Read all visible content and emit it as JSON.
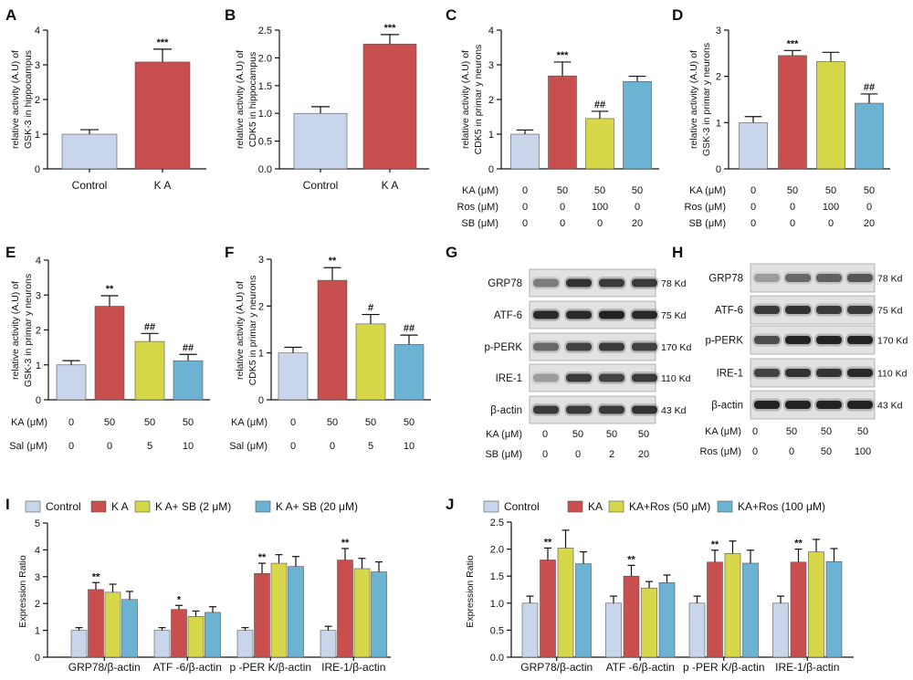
{
  "chart_data": [
    {
      "panel": "A",
      "type": "bar",
      "ylabel": [
        "relative activity (A.U) of",
        "GSK-3 in hippocampus"
      ],
      "ylim": [
        0,
        4
      ],
      "yticks": [
        "0",
        "1",
        "2",
        "3",
        "4"
      ],
      "categories": [
        "Control",
        "K A"
      ],
      "values": [
        1.0,
        3.08
      ],
      "error_upper": [
        1.13,
        3.45
      ],
      "annotations": [
        "",
        "***"
      ],
      "colors": [
        "#c9d5ea",
        "#c94f4f"
      ]
    },
    {
      "panel": "B",
      "type": "bar",
      "ylabel": [
        "relative activity (A.U) of",
        "CDK5 in hippocampus"
      ],
      "ylim": [
        0,
        2.5
      ],
      "yticks": [
        "0.0",
        "0.5",
        "1.0",
        "1.5",
        "2.0",
        "2.5"
      ],
      "categories": [
        "Control",
        "K A"
      ],
      "values": [
        1.0,
        2.25
      ],
      "error_upper": [
        1.12,
        2.42
      ],
      "annotations": [
        "",
        "***"
      ],
      "colors": [
        "#c9d5ea",
        "#c94f4f"
      ]
    },
    {
      "panel": "C",
      "type": "bar",
      "ylabel": [
        "relative activity (A.U) of",
        "CDK5 in primar y neurons"
      ],
      "ylim": [
        0,
        4
      ],
      "yticks": [
        "0",
        "1",
        "2",
        "3",
        "4"
      ],
      "values": [
        1.0,
        2.68,
        1.45,
        2.52
      ],
      "error_upper": [
        1.12,
        3.08,
        1.66,
        2.67
      ],
      "annotations": [
        "",
        "***",
        "##",
        ""
      ],
      "colors": [
        "#c9d5ea",
        "#c94f4f",
        "#d6d84a",
        "#6cb3d3"
      ],
      "conditions": [
        {
          "label": "KA (μM)",
          "values": [
            "0",
            "50",
            "50",
            "50"
          ]
        },
        {
          "label": "Ros (μM)",
          "values": [
            "0",
            "0",
            "100",
            "0"
          ]
        },
        {
          "label": "SB (μM)",
          "values": [
            "0",
            "0",
            "0",
            "20"
          ]
        }
      ]
    },
    {
      "panel": "D",
      "type": "bar",
      "ylabel": [
        "relative activity (A.U) of",
        "GSK-3 in primar y neurons"
      ],
      "ylim": [
        0,
        3
      ],
      "yticks": [
        "0",
        "1",
        "2",
        "3"
      ],
      "values": [
        1.0,
        2.45,
        2.32,
        1.42
      ],
      "error_upper": [
        1.13,
        2.56,
        2.52,
        1.62
      ],
      "annotations": [
        "",
        "***",
        "",
        "##"
      ],
      "colors": [
        "#c9d5ea",
        "#c94f4f",
        "#d6d84a",
        "#6cb3d3"
      ],
      "conditions": [
        {
          "label": "KA (μM)",
          "values": [
            "0",
            "50",
            "50",
            "50"
          ]
        },
        {
          "label": "Ros (μM)",
          "values": [
            "0",
            "0",
            "100",
            "0"
          ]
        },
        {
          "label": "SB (μM)",
          "values": [
            "0",
            "0",
            "0",
            "20"
          ]
        }
      ]
    },
    {
      "panel": "E",
      "type": "bar",
      "ylabel": [
        "relative activity (A.U) of",
        "GSK-3 in primar y neurons"
      ],
      "ylim": [
        0,
        4
      ],
      "yticks": [
        "0",
        "1",
        "2",
        "3",
        "4"
      ],
      "values": [
        1.0,
        2.68,
        1.67,
        1.12
      ],
      "error_upper": [
        1.12,
        2.98,
        1.9,
        1.3
      ],
      "annotations": [
        "",
        "**",
        "##",
        "##"
      ],
      "colors": [
        "#c9d5ea",
        "#c94f4f",
        "#d6d84a",
        "#6cb3d3"
      ],
      "conditions": [
        {
          "label": "KA (μM)",
          "values": [
            "0",
            "50",
            "50",
            "50"
          ]
        },
        {
          "label": "Sal (μM)",
          "values": [
            "0",
            "0",
            "5",
            "10"
          ]
        }
      ]
    },
    {
      "panel": "F",
      "type": "bar",
      "ylabel": [
        "relative activity (A.U) of",
        "CDK5 in primar y neurons"
      ],
      "ylim": [
        0,
        3
      ],
      "yticks": [
        "0",
        "1",
        "2",
        "3"
      ],
      "values": [
        1.0,
        2.55,
        1.62,
        1.18
      ],
      "error_upper": [
        1.12,
        2.82,
        1.82,
        1.38
      ],
      "annotations": [
        "",
        "**",
        "#",
        "##"
      ],
      "colors": [
        "#c9d5ea",
        "#c94f4f",
        "#d6d84a",
        "#6cb3d3"
      ],
      "conditions": [
        {
          "label": "KA (μM)",
          "values": [
            "0",
            "50",
            "50",
            "50"
          ]
        },
        {
          "label": "Sal (μM)",
          "values": [
            "0",
            "0",
            "5",
            "10"
          ]
        }
      ]
    },
    {
      "panel": "I",
      "type": "grouped_bar",
      "ylabel": [
        "Expression Ratio"
      ],
      "ylim": [
        0,
        5
      ],
      "yticks": [
        "0",
        "1",
        "2",
        "3",
        "4",
        "5"
      ],
      "groups": [
        "GRP78/β-actin",
        "ATF -6/β-actin",
        "p -PER K/β-actin",
        "IRE-1/β-actin"
      ],
      "series": [
        {
          "name": "Control",
          "color": "#c9d5ea",
          "values": [
            1.0,
            1.0,
            1.0,
            1.0
          ],
          "error_upper": [
            1.1,
            1.1,
            1.1,
            1.15
          ],
          "annotations": [
            "",
            "",
            "",
            ""
          ]
        },
        {
          "name": "K A",
          "color": "#c94f4f",
          "values": [
            2.52,
            1.78,
            3.12,
            3.62
          ],
          "error_upper": [
            2.78,
            1.93,
            3.5,
            4.05
          ],
          "annotations": [
            "**",
            "*",
            "**",
            "**"
          ]
        },
        {
          "name": "K A+ SB (2 μM)",
          "color": "#d6d84a",
          "values": [
            2.42,
            1.52,
            3.5,
            3.3
          ],
          "error_upper": [
            2.72,
            1.72,
            3.82,
            3.68
          ],
          "annotations": [
            "",
            "",
            "",
            ""
          ]
        },
        {
          "name": "K A+ SB (20 μM)",
          "color": "#6cb3d3",
          "values": [
            2.15,
            1.67,
            3.38,
            3.18
          ],
          "error_upper": [
            2.45,
            1.88,
            3.75,
            3.55
          ],
          "annotations": [
            "",
            "",
            "",
            ""
          ]
        }
      ]
    },
    {
      "panel": "J",
      "type": "grouped_bar",
      "ylabel": [
        "Expression Ratio"
      ],
      "ylim": [
        0,
        2.5
      ],
      "yticks": [
        "0.0",
        "0.5",
        "1.0",
        "1.5",
        "2.0",
        "2.5"
      ],
      "groups": [
        "GRP78/β-actin",
        "ATF -6/β-actin",
        "p -PER K/β-actin",
        "IRE-1/β-actin"
      ],
      "series": [
        {
          "name": "Control",
          "color": "#c9d5ea",
          "values": [
            1.0,
            1.0,
            1.0,
            1.0
          ],
          "error_upper": [
            1.13,
            1.13,
            1.13,
            1.13
          ],
          "annotations": [
            "",
            "",
            "",
            ""
          ]
        },
        {
          "name": "KA",
          "color": "#c94f4f",
          "values": [
            1.8,
            1.5,
            1.76,
            1.76
          ],
          "error_upper": [
            2.02,
            1.7,
            1.98,
            2.0
          ],
          "annotations": [
            "**",
            "**",
            "**",
            "**"
          ]
        },
        {
          "name": "KA+Ros (50 μM)",
          "color": "#d6d84a",
          "values": [
            2.02,
            1.28,
            1.92,
            1.95
          ],
          "error_upper": [
            2.35,
            1.4,
            2.15,
            2.18
          ],
          "annotations": [
            "",
            "",
            "",
            ""
          ]
        },
        {
          "name": "KA+Ros (100 μM)",
          "color": "#6cb3d3",
          "values": [
            1.73,
            1.38,
            1.74,
            1.77
          ],
          "error_upper": [
            1.95,
            1.52,
            1.98,
            2.01
          ],
          "annotations": [
            "",
            "",
            "",
            ""
          ]
        }
      ]
    }
  ],
  "blots": [
    {
      "panel": "G",
      "rows": [
        {
          "protein": "GRP78",
          "size": "78 Kd"
        },
        {
          "protein": "ATF-6",
          "size": "75 Kd"
        },
        {
          "protein": "p-PERK",
          "size": "170 Kd"
        },
        {
          "protein": "IRE-1",
          "size": "110 Kd"
        },
        {
          "protein": "β-actin",
          "size": "43 Kd"
        }
      ],
      "conditions": [
        {
          "label": "KA (μM)",
          "values": [
            "0",
            "50",
            "50",
            "50"
          ]
        },
        {
          "label": "SB (μM)",
          "values": [
            "0",
            "0",
            "2",
            "20"
          ]
        }
      ]
    },
    {
      "panel": "H",
      "rows": [
        {
          "protein": "GRP78",
          "size": "78 Kd"
        },
        {
          "protein": "ATF-6",
          "size": "75 Kd"
        },
        {
          "protein": "p-PERK",
          "size": "170 Kd"
        },
        {
          "protein": "IRE-1",
          "size": "110 Kd"
        },
        {
          "protein": "β-actin",
          "size": "43 Kd"
        }
      ],
      "conditions": [
        {
          "label": "KA (μM)",
          "values": [
            "0",
            "50",
            "50",
            "50"
          ]
        },
        {
          "label": "Ros (μM)",
          "values": [
            "0",
            "0",
            "50",
            "100"
          ]
        }
      ]
    }
  ]
}
